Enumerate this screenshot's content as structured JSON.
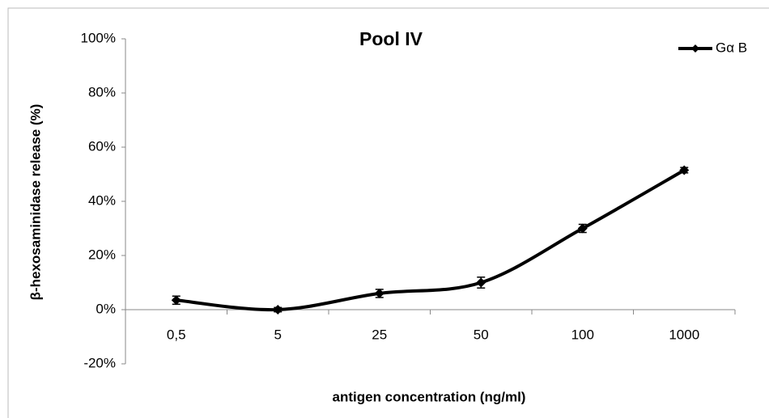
{
  "chart_data": {
    "type": "line",
    "title": "Pool IV",
    "x_label": "antigen concentration (ng/ml)",
    "y_label": "β-hexosaminidase release (%)",
    "categories": [
      "0,5",
      "5",
      "25",
      "50",
      "100",
      "1000"
    ],
    "series": [
      {
        "name": "Gα B",
        "color": "#000000",
        "values": [
          3.5,
          0,
          6,
          10,
          30,
          51.5
        ],
        "errors": [
          1.5,
          0.8,
          1.5,
          2,
          1.5,
          1
        ]
      }
    ],
    "ylim": [
      -20,
      100
    ],
    "yticks": [
      {
        "value": -20,
        "label": "-20%"
      },
      {
        "value": 0,
        "label": "0%"
      },
      {
        "value": 20,
        "label": "20%"
      },
      {
        "value": 40,
        "label": "40%"
      },
      {
        "value": 60,
        "label": "60%"
      },
      {
        "value": 80,
        "label": "80%"
      },
      {
        "value": 100,
        "label": "100%"
      }
    ],
    "grid": false,
    "smooth": true,
    "legend": "top-right"
  }
}
